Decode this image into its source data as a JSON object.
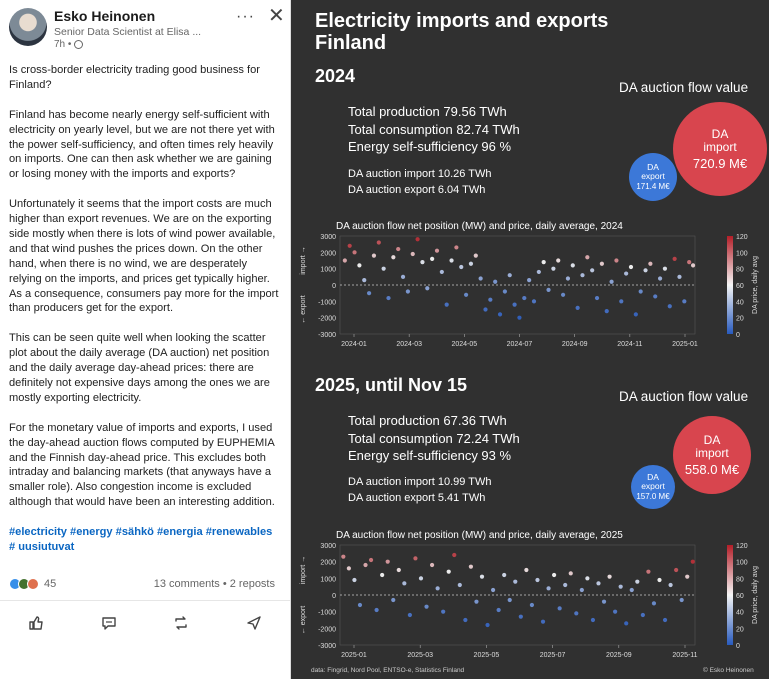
{
  "post": {
    "author": "Esko Heinonen",
    "subtitle": "Senior Data Scientist at Elisa ...",
    "time": "7h •",
    "paragraphs": [
      "Is cross-border electricity trading good business for Finland?",
      "Finland has become nearly energy self-sufficient with electricity on yearly level, but we are not there yet with the power self-sufficiency, and often times rely heavily on imports. One can then ask whether we are gaining or losing money with the imports and exports?",
      "Unfortunately it seems that the import costs are much higher than export revenues. We are on the exporting side mostly when there is lots of wind power available, and that wind pushes the prices down. On the other hand, when there is no wind, we are desperately relying on the imports, and prices get typically higher. As a consequence, consumers pay more for the import than producers get for the export.",
      "This can be seen quite well when looking the scatter plot about the daily average (DA auction) net position and the daily average day-ahead prices: there are definitely not expensive days among the ones we are mostly exporting electricity.",
      "For the monetary value of imports and exports, I used the day-ahead auction flows computed by EUPHEMIA and the Finnish day-ahead price. This excludes both intraday and balancing markets (that anyways have a smaller role). Also congestion income is excluded although that would have been an interesting addition."
    ],
    "hashtags": "#electricity #energy #sähkö #energia #renewables # uusiutuvat",
    "reaction_count": "45",
    "comments_reposts": "13 comments • 2 reposts",
    "reaction_colors": [
      "#378fe9",
      "#44712e",
      "#df704d"
    ]
  },
  "infographic": {
    "title_line1": "Electricity imports and exports",
    "title_line2": "Finland",
    "flow_value_label": "DA auction flow value",
    "sections": [
      {
        "year_label": "2024",
        "total_production": "Total production 79.56 TWh",
        "total_consumption": "Total consumption 82.74 TWh",
        "self_sufficiency": "Energy self-sufficiency 96 %",
        "da_import": "DA auction import 10.26 TWh",
        "da_export": "DA auction export 6.04 TWh",
        "bubble_import_label": "DA\nimport",
        "bubble_import_value": "720.9 M€",
        "bubble_export_label": "DA\nexport",
        "bubble_export_value": "171.4 M€",
        "chart_title": "DA auction flow net position (MW) and price, daily average, 2024"
      },
      {
        "year_label": "2025, until Nov 15",
        "total_production": "Total production 67.36 TWh",
        "total_consumption": "Total consumption 72.24 TWh",
        "self_sufficiency": "Energy self-sufficiency 93 %",
        "da_import": "DA auction import 10.99 TWh",
        "da_export": "DA auction export 5.41 TWh",
        "bubble_import_label": "DA\nimport",
        "bubble_import_value": "558.0 M€",
        "bubble_export_label": "DA\nexport",
        "bubble_export_value": "157.0 M€",
        "chart_title": "DA auction flow net position (MW) and price, daily average, 2025"
      }
    ],
    "source": "data: Fingrid, Nord Pool, ENTSO-e, Statistics Finland",
    "copyright": "© Esko Heinonen"
  },
  "chart_data": [
    {
      "type": "scatter",
      "title": "DA auction flow net position (MW) and price, daily average, 2024",
      "ylabel_up": "import →",
      "ylabel_down": "← export",
      "colorbar_label": "DA price, daily avg",
      "yticks": [
        3000,
        2000,
        1000,
        0,
        -1000,
        -2000,
        -3000
      ],
      "ylim": [
        -3000,
        3000
      ],
      "xticks": [
        "2024-01",
        "2024-03",
        "2024-05",
        "2024-07",
        "2024-09",
        "2024-11",
        "2025-01"
      ],
      "x_days_range": [
        0,
        366
      ],
      "colorbar_ticks": [
        120,
        100,
        80,
        60,
        40,
        20,
        0
      ],
      "price_range": [
        0,
        120
      ],
      "series_points_approx": [
        [
          5,
          1500,
          80
        ],
        [
          10,
          2400,
          110
        ],
        [
          15,
          2000,
          95
        ],
        [
          20,
          1200,
          60
        ],
        [
          25,
          300,
          40
        ],
        [
          30,
          -500,
          20
        ],
        [
          35,
          1800,
          70
        ],
        [
          40,
          2600,
          105
        ],
        [
          45,
          1000,
          50
        ],
        [
          50,
          -800,
          15
        ],
        [
          55,
          1700,
          65
        ],
        [
          60,
          2200,
          90
        ],
        [
          65,
          500,
          35
        ],
        [
          70,
          -400,
          25
        ],
        [
          75,
          1900,
          75
        ],
        [
          80,
          2800,
          115
        ],
        [
          85,
          1400,
          55
        ],
        [
          90,
          -200,
          30
        ],
        [
          95,
          1600,
          60
        ],
        [
          100,
          2100,
          85
        ],
        [
          105,
          800,
          40
        ],
        [
          110,
          -1200,
          10
        ],
        [
          115,
          1500,
          55
        ],
        [
          120,
          2300,
          90
        ],
        [
          125,
          1100,
          45
        ],
        [
          130,
          -600,
          20
        ],
        [
          135,
          1300,
          50
        ],
        [
          140,
          1800,
          70
        ],
        [
          145,
          400,
          30
        ],
        [
          150,
          -1500,
          8
        ],
        [
          155,
          -900,
          15
        ],
        [
          160,
          200,
          25
        ],
        [
          165,
          -1800,
          5
        ],
        [
          170,
          -400,
          20
        ],
        [
          175,
          600,
          35
        ],
        [
          180,
          -1200,
          10
        ],
        [
          185,
          -2000,
          3
        ],
        [
          190,
          -800,
          15
        ],
        [
          195,
          300,
          30
        ],
        [
          200,
          -1000,
          12
        ],
        [
          205,
          800,
          40
        ],
        [
          210,
          1400,
          60
        ],
        [
          215,
          -300,
          25
        ],
        [
          220,
          1000,
          50
        ],
        [
          225,
          1500,
          65
        ],
        [
          230,
          -600,
          20
        ],
        [
          235,
          400,
          35
        ],
        [
          240,
          1200,
          55
        ],
        [
          245,
          -1400,
          10
        ],
        [
          250,
          600,
          40
        ],
        [
          255,
          1700,
          80
        ],
        [
          260,
          900,
          45
        ],
        [
          265,
          -800,
          15
        ],
        [
          270,
          1300,
          70
        ],
        [
          275,
          -1600,
          8
        ],
        [
          280,
          200,
          30
        ],
        [
          285,
          1500,
          90
        ],
        [
          290,
          -1000,
          12
        ],
        [
          295,
          700,
          40
        ],
        [
          300,
          1100,
          60
        ],
        [
          305,
          -1800,
          5
        ],
        [
          310,
          -400,
          20
        ],
        [
          315,
          900,
          50
        ],
        [
          320,
          1300,
          75
        ],
        [
          325,
          -700,
          15
        ],
        [
          330,
          400,
          35
        ],
        [
          335,
          1000,
          55
        ],
        [
          340,
          -1300,
          10
        ],
        [
          345,
          1600,
          110
        ],
        [
          350,
          500,
          40
        ],
        [
          355,
          -1000,
          15
        ],
        [
          360,
          1400,
          95
        ],
        [
          364,
          1200,
          70
        ]
      ]
    },
    {
      "type": "scatter",
      "title": "DA auction flow net position (MW) and price, daily average, 2025",
      "ylabel_up": "import →",
      "ylabel_down": "← export",
      "colorbar_label": "DA price, daily avg",
      "yticks": [
        3000,
        2000,
        1000,
        0,
        -1000,
        -2000,
        -3000
      ],
      "ylim": [
        -3000,
        3000
      ],
      "xticks": [
        "2025-01",
        "2025-03",
        "2025-05",
        "2025-07",
        "2025-09",
        "2025-11"
      ],
      "x_days_range": [
        0,
        320
      ],
      "colorbar_ticks": [
        120,
        100,
        80,
        60,
        40,
        20,
        0
      ],
      "price_range": [
        0,
        120
      ],
      "series_points_approx": [
        [
          3,
          2300,
          90
        ],
        [
          8,
          1600,
          70
        ],
        [
          13,
          900,
          50
        ],
        [
          18,
          -600,
          20
        ],
        [
          23,
          1800,
          80
        ],
        [
          28,
          2100,
          95
        ],
        [
          33,
          -900,
          15
        ],
        [
          38,
          1200,
          60
        ],
        [
          43,
          2000,
          85
        ],
        [
          48,
          -300,
          25
        ],
        [
          53,
          1500,
          65
        ],
        [
          58,
          700,
          40
        ],
        [
          63,
          -1200,
          10
        ],
        [
          68,
          2200,
          100
        ],
        [
          73,
          1000,
          50
        ],
        [
          78,
          -700,
          20
        ],
        [
          83,
          1800,
          75
        ],
        [
          88,
          400,
          35
        ],
        [
          93,
          -1000,
          12
        ],
        [
          98,
          1400,
          60
        ],
        [
          103,
          2400,
          110
        ],
        [
          108,
          600,
          40
        ],
        [
          113,
          -1500,
          8
        ],
        [
          118,
          1700,
          70
        ],
        [
          123,
          -400,
          25
        ],
        [
          128,
          1100,
          55
        ],
        [
          133,
          -1800,
          5
        ],
        [
          138,
          300,
          30
        ],
        [
          143,
          -900,
          15
        ],
        [
          148,
          1200,
          50
        ],
        [
          153,
          -300,
          25
        ],
        [
          158,
          800,
          40
        ],
        [
          163,
          -1300,
          10
        ],
        [
          168,
          1500,
          65
        ],
        [
          173,
          -600,
          20
        ],
        [
          178,
          900,
          45
        ],
        [
          183,
          -1600,
          8
        ],
        [
          188,
          400,
          35
        ],
        [
          193,
          1200,
          60
        ],
        [
          198,
          -800,
          15
        ],
        [
          203,
          600,
          40
        ],
        [
          208,
          1300,
          70
        ],
        [
          213,
          -1100,
          12
        ],
        [
          218,
          300,
          30
        ],
        [
          223,
          1000,
          55
        ],
        [
          228,
          -1500,
          8
        ],
        [
          233,
          700,
          45
        ],
        [
          238,
          -400,
          25
        ],
        [
          243,
          1100,
          65
        ],
        [
          248,
          -1000,
          12
        ],
        [
          253,
          500,
          40
        ],
        [
          258,
          -1700,
          5
        ],
        [
          263,
          300,
          30
        ],
        [
          268,
          800,
          50
        ],
        [
          273,
          -1200,
          10
        ],
        [
          278,
          1400,
          95
        ],
        [
          283,
          -500,
          20
        ],
        [
          288,
          900,
          60
        ],
        [
          293,
          -1500,
          8
        ],
        [
          298,
          600,
          45
        ],
        [
          303,
          1500,
          105
        ],
        [
          308,
          -300,
          25
        ],
        [
          313,
          1100,
          70
        ],
        [
          318,
          2000,
          115
        ]
      ]
    }
  ]
}
